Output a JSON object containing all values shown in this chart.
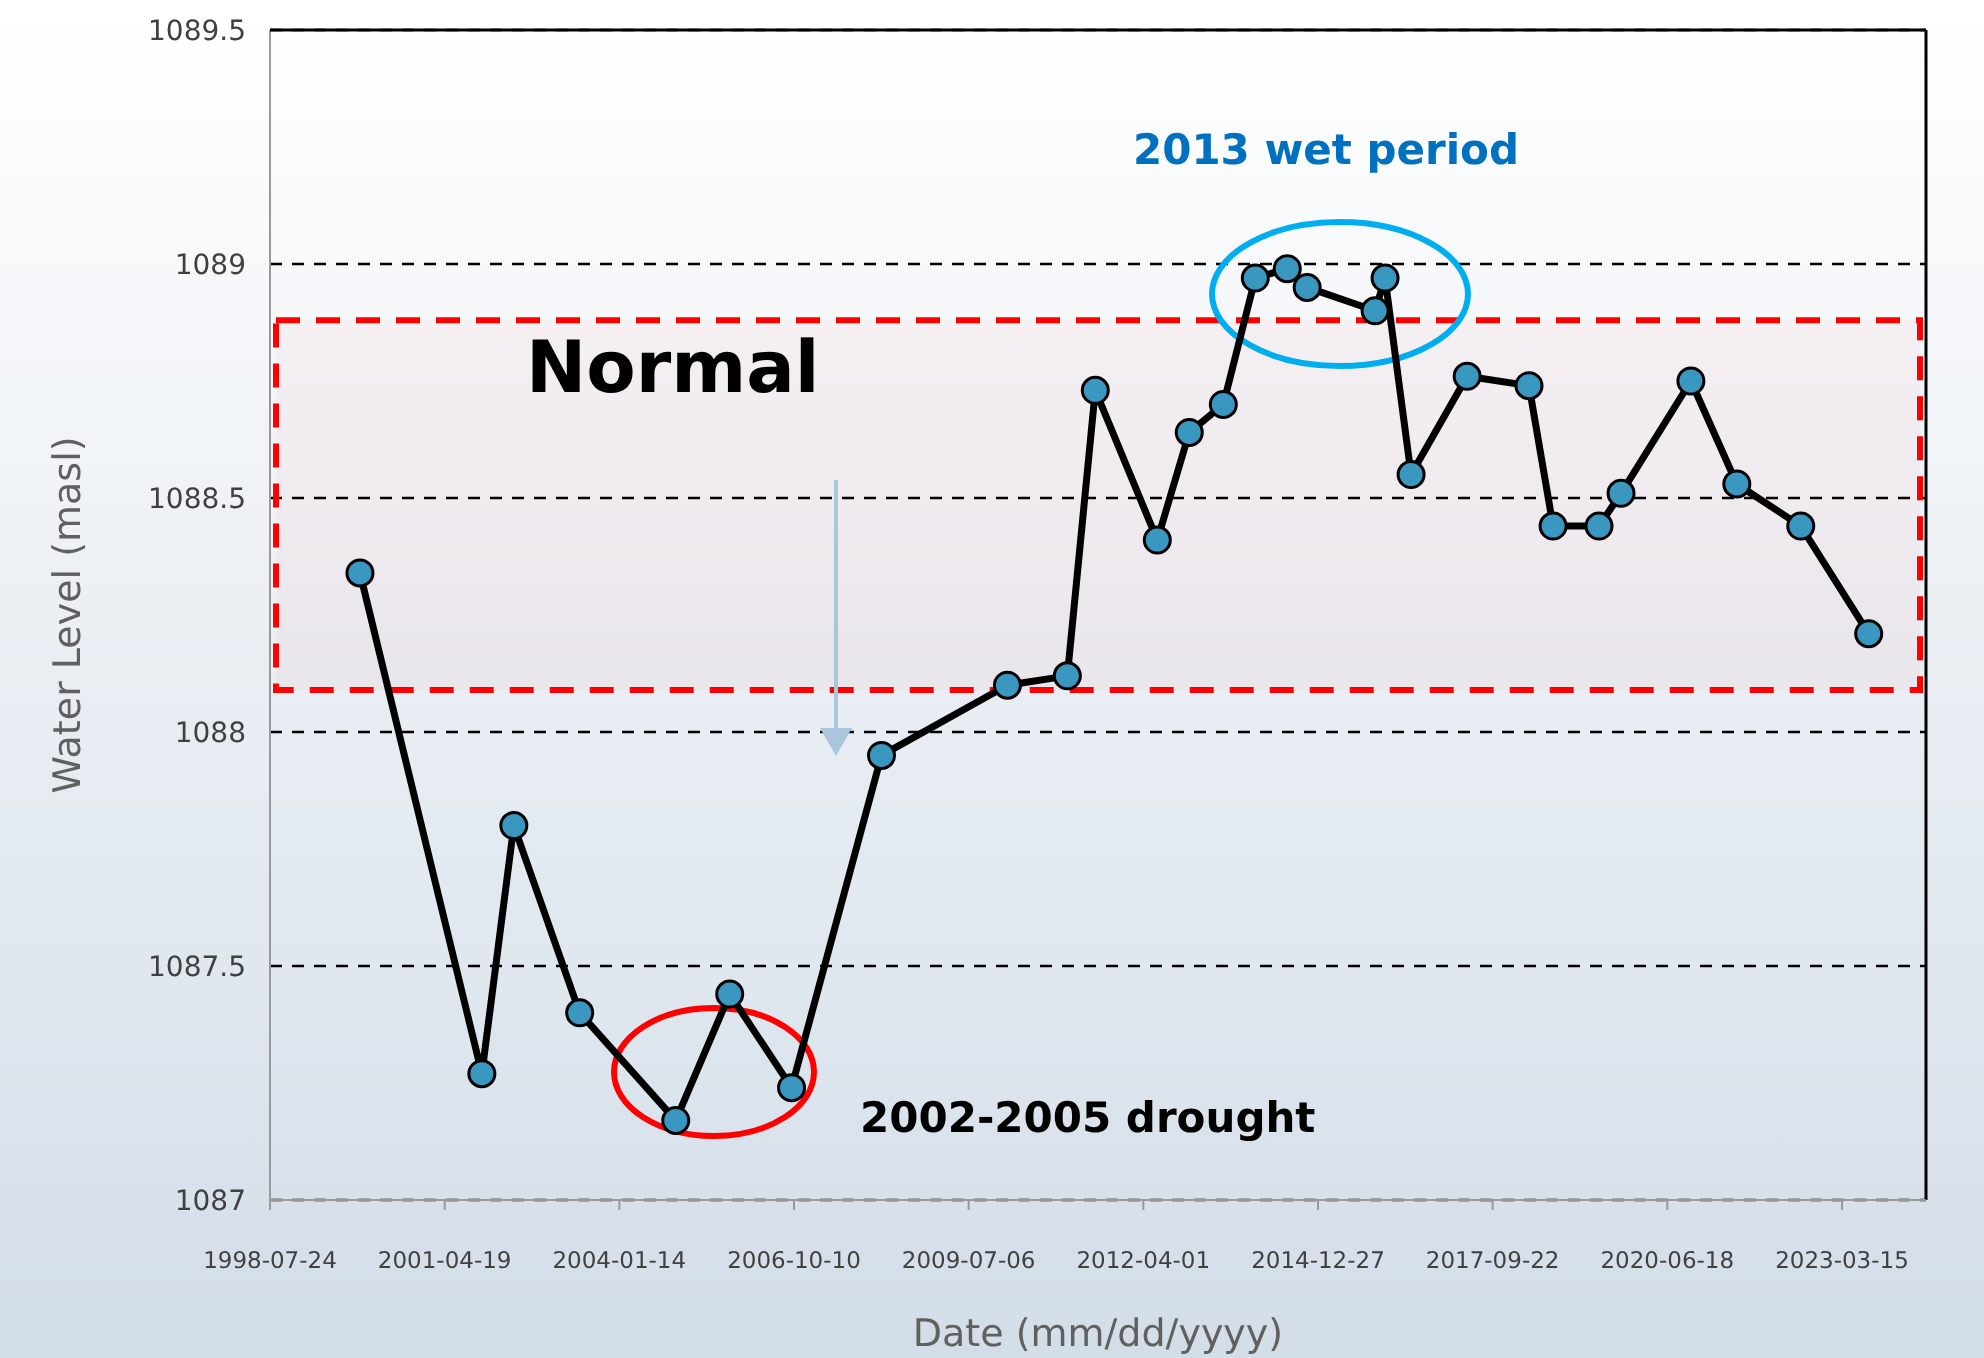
{
  "chart_data": {
    "type": "line",
    "xlabel": "Date (mm/dd/yyyy)",
    "ylabel": "Water Level (masl)",
    "x": [
      "1999-12-21",
      "2001-11-18",
      "2002-05-20",
      "2003-06-01",
      "2004-12-02",
      "2005-10-07",
      "2006-09-26",
      "2008-02-23",
      "2010-02-13",
      "2011-01-22",
      "2011-07-01",
      "2012-06-20",
      "2012-12-20",
      "2013-07-03",
      "2014-01-02",
      "2014-07-04",
      "2014-10-26",
      "2015-11-19",
      "2016-01-15",
      "2016-06-12",
      "2017-04-29",
      "2018-04-18",
      "2018-09-03",
      "2019-05-24",
      "2019-09-27",
      "2020-10-31",
      "2021-07-21",
      "2022-07-22",
      "2023-08-15"
    ],
    "series": [
      {
        "color": "#000000",
        "values": [
          1088.34,
          1087.27,
          1087.8,
          1087.4,
          1087.17,
          1087.44,
          1087.24,
          1087.95,
          1088.1,
          1088.12,
          1088.73,
          1088.41,
          1088.64,
          1088.7,
          1088.97,
          1088.99,
          1088.95,
          1088.9,
          1088.97,
          1088.55,
          1088.76,
          1088.74,
          1088.44,
          1088.44,
          1088.51,
          1088.75,
          1088.53,
          1088.44,
          1088.21
        ]
      }
    ],
    "marker": "circle",
    "line_style": "solid",
    "xlim": [
      "1998-07-24",
      "2024-07-08"
    ],
    "xticks": [
      {
        "value": "1998-07-24",
        "label": "1998-07-24"
      },
      {
        "value": "2001-04-19",
        "label": "2001-04-19"
      },
      {
        "value": "2004-01-14",
        "label": "2004-01-14"
      },
      {
        "value": "2006-10-10",
        "label": "2006-10-10"
      },
      {
        "value": "2009-07-06",
        "label": "2009-07-06"
      },
      {
        "value": "2012-04-01",
        "label": "2012-04-01"
      },
      {
        "value": "2014-12-27",
        "label": "2014-12-27"
      },
      {
        "value": "2017-09-22",
        "label": "2017-09-22"
      },
      {
        "value": "2020-06-18",
        "label": "2020-06-18"
      },
      {
        "value": "2023-03-15",
        "label": "2023-03-15"
      }
    ],
    "ylim": [
      1087,
      1089.5
    ],
    "yticks": [
      1087,
      1087.5,
      1088,
      1088.5,
      1089,
      1089.5
    ],
    "grid": "y",
    "bands": [
      {
        "axis": "y",
        "from": 1088.09,
        "to": 1088.88,
        "label": "Normal",
        "color": "#ff0000"
      }
    ],
    "annotations": [
      "2002-2005 drought",
      "2013 wet period"
    ]
  }
}
